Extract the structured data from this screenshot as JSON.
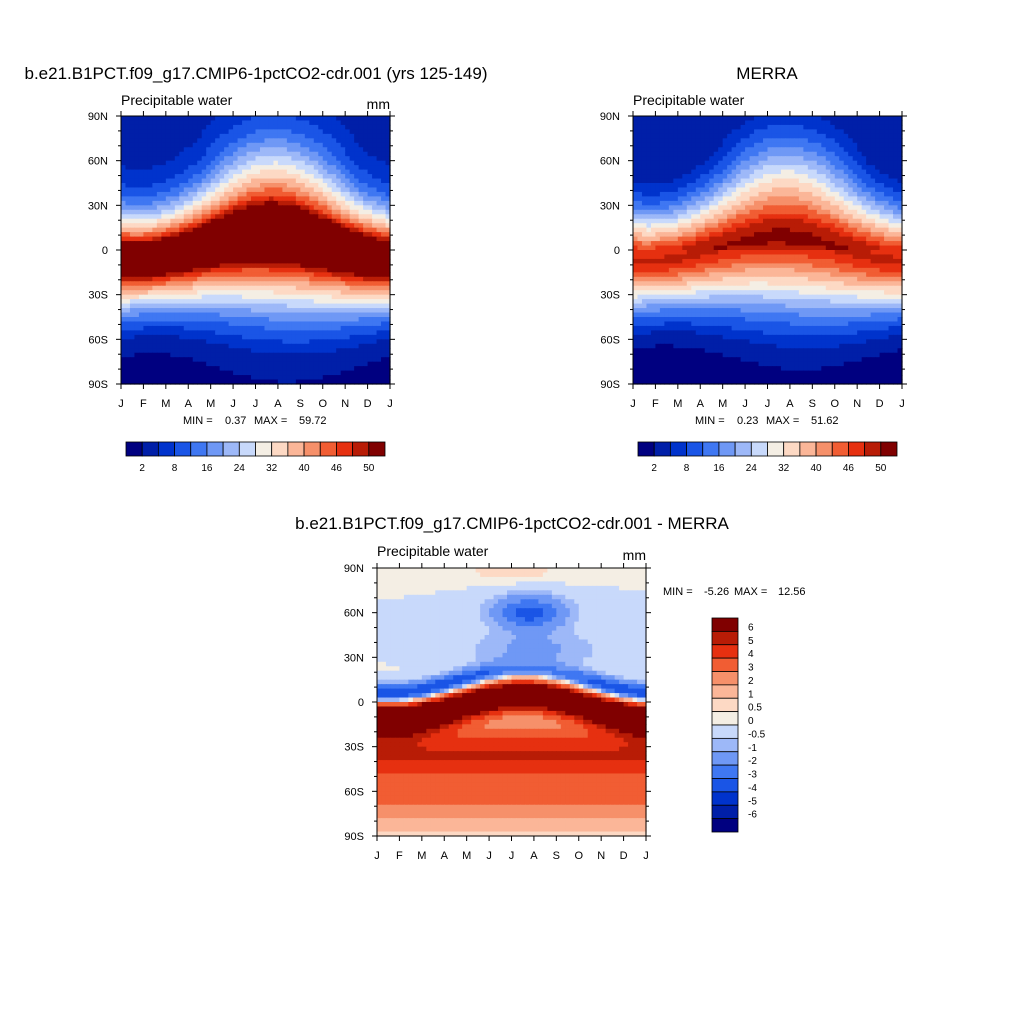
{
  "chart_data": [
    {
      "type": "heatmap",
      "title": "b.e21.B1PCT.f09_g17.CMIP6-1pctCO2-cdr.001 (yrs 125-149)",
      "subtitle": "Precipitable water",
      "units": "mm",
      "x_ticks": [
        "J",
        "F",
        "M",
        "A",
        "M",
        "J",
        "J",
        "A",
        "S",
        "O",
        "N",
        "D",
        "J"
      ],
      "y_ticks": [
        "90N",
        "60N",
        "30N",
        "0",
        "30S",
        "60S",
        "90S"
      ],
      "ylim": [
        -90,
        90
      ],
      "min_label": "MIN =",
      "min_value": "0.37",
      "max_label": "MAX =",
      "max_value": "59.72",
      "colorbar_levels": [
        2,
        5,
        8,
        12,
        16,
        20,
        24,
        28,
        32,
        36,
        40,
        43,
        46,
        48,
        50
      ],
      "colorbar_labels": [
        "2",
        "8",
        "16",
        "24",
        "32",
        "40",
        "46",
        "50"
      ],
      "field": {
        "equator_max": 55,
        "equator_lat_amplitude": 8,
        "nh_polar_min": 4,
        "sh_polar_min": 1
      }
    },
    {
      "type": "heatmap",
      "title": "MERRA",
      "subtitle": "Precipitable water",
      "units": "",
      "x_ticks": [
        "J",
        "F",
        "M",
        "A",
        "M",
        "J",
        "J",
        "A",
        "S",
        "O",
        "N",
        "D",
        "J"
      ],
      "y_ticks": [
        "90N",
        "60N",
        "30N",
        "0",
        "30S",
        "60S",
        "90S"
      ],
      "ylim": [
        -90,
        90
      ],
      "min_label": "MIN =",
      "min_value": "0.23",
      "max_label": "MAX =",
      "max_value": "51.62",
      "colorbar_levels": [
        2,
        5,
        8,
        12,
        16,
        20,
        24,
        28,
        32,
        36,
        40,
        43,
        46,
        48,
        50
      ],
      "colorbar_labels": [
        "2",
        "8",
        "16",
        "24",
        "32",
        "40",
        "46",
        "50"
      ],
      "field": {
        "equator_max": 48,
        "equator_lat_amplitude": 8,
        "nh_polar_min": 2,
        "sh_polar_min": 0.3
      }
    },
    {
      "type": "heatmap",
      "title": "b.e21.B1PCT.f09_g17.CMIP6-1pctCO2-cdr.001 - MERRA",
      "subtitle": "Precipitable water",
      "units": "mm",
      "x_ticks": [
        "J",
        "F",
        "M",
        "A",
        "M",
        "J",
        "J",
        "A",
        "S",
        "O",
        "N",
        "D",
        "J"
      ],
      "y_ticks": [
        "90N",
        "60N",
        "30N",
        "0",
        "30S",
        "60S",
        "90S"
      ],
      "ylim": [
        -90,
        90
      ],
      "min_label": "MIN =",
      "min_value": "-5.26",
      "max_label": "MAX =",
      "max_value": "12.56",
      "colorbar_levels": [
        -6,
        -5,
        -4,
        -3,
        -2,
        -1,
        -0.5,
        0,
        0.5,
        1,
        2,
        3,
        4,
        5,
        6
      ],
      "colorbar_labels": [
        "6",
        "5",
        "4",
        "3",
        "2",
        "1",
        "0.5",
        "0",
        "-0.5",
        "-1",
        "-2",
        "-3",
        "-4",
        "-5",
        "-6"
      ]
    }
  ],
  "colors": {
    "palette": [
      "#000080",
      "#001fa8",
      "#0033cc",
      "#1a55e6",
      "#3f77f2",
      "#6f98f5",
      "#9db8f8",
      "#c8d9fb",
      "#f4eee4",
      "#fdd9c4",
      "#fbb698",
      "#f6906a",
      "#f15d33",
      "#e63010",
      "#b81c06",
      "#800000"
    ]
  }
}
